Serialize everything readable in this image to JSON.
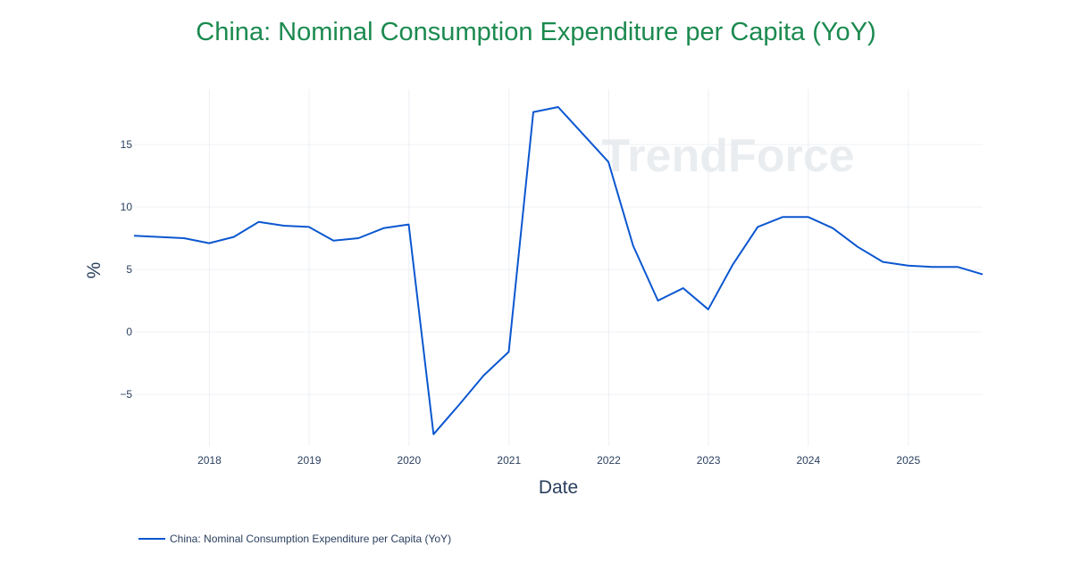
{
  "chart_data": {
    "type": "line",
    "title": "China: Nominal Consumption Expenditure per Capita (YoY)",
    "xlabel": "Date",
    "ylabel": "%",
    "watermark": "TrendForce",
    "x_ticks": [
      "2018",
      "2019",
      "2020",
      "2021",
      "2022",
      "2023",
      "2024",
      "2025"
    ],
    "y_ticks": [
      "−5",
      "0",
      "5",
      "10",
      "15"
    ],
    "grid": true,
    "legend_position": "bottom-left",
    "colors": {
      "title": "#1b8a4f",
      "line": "#0b57d0",
      "grid": "#eef0f4",
      "text": "#2a3f5f"
    },
    "series": [
      {
        "name": "China: Nominal Consumption Expenditure per Capita (YoY)",
        "x": [
          "2017-03-31",
          "2017-06-30",
          "2017-09-30",
          "2017-12-31",
          "2018-03-31",
          "2018-06-30",
          "2018-09-30",
          "2018-12-31",
          "2019-03-31",
          "2019-06-30",
          "2019-09-30",
          "2019-12-31",
          "2020-03-31",
          "2020-06-30",
          "2020-09-30",
          "2020-12-31",
          "2021-03-31",
          "2021-06-30",
          "2021-09-30",
          "2021-12-31",
          "2022-03-31",
          "2022-06-30",
          "2022-09-30",
          "2022-12-31",
          "2023-03-31",
          "2023-06-30",
          "2023-09-30",
          "2023-12-31",
          "2024-03-31",
          "2024-06-30",
          "2024-09-30",
          "2024-12-31",
          "2025-03-31",
          "2025-06-30",
          "2025-09-30"
        ],
        "values": [
          7.7,
          7.6,
          7.5,
          7.1,
          7.6,
          8.8,
          8.5,
          8.4,
          7.3,
          7.5,
          8.3,
          8.6,
          -8.2,
          -5.9,
          -3.5,
          -1.6,
          17.6,
          18.0,
          15.8,
          13.6,
          6.9,
          2.5,
          3.5,
          1.8,
          5.4,
          8.4,
          9.2,
          9.2,
          8.3,
          6.8,
          5.6,
          5.3,
          5.2,
          5.2,
          4.6
        ]
      }
    ]
  }
}
